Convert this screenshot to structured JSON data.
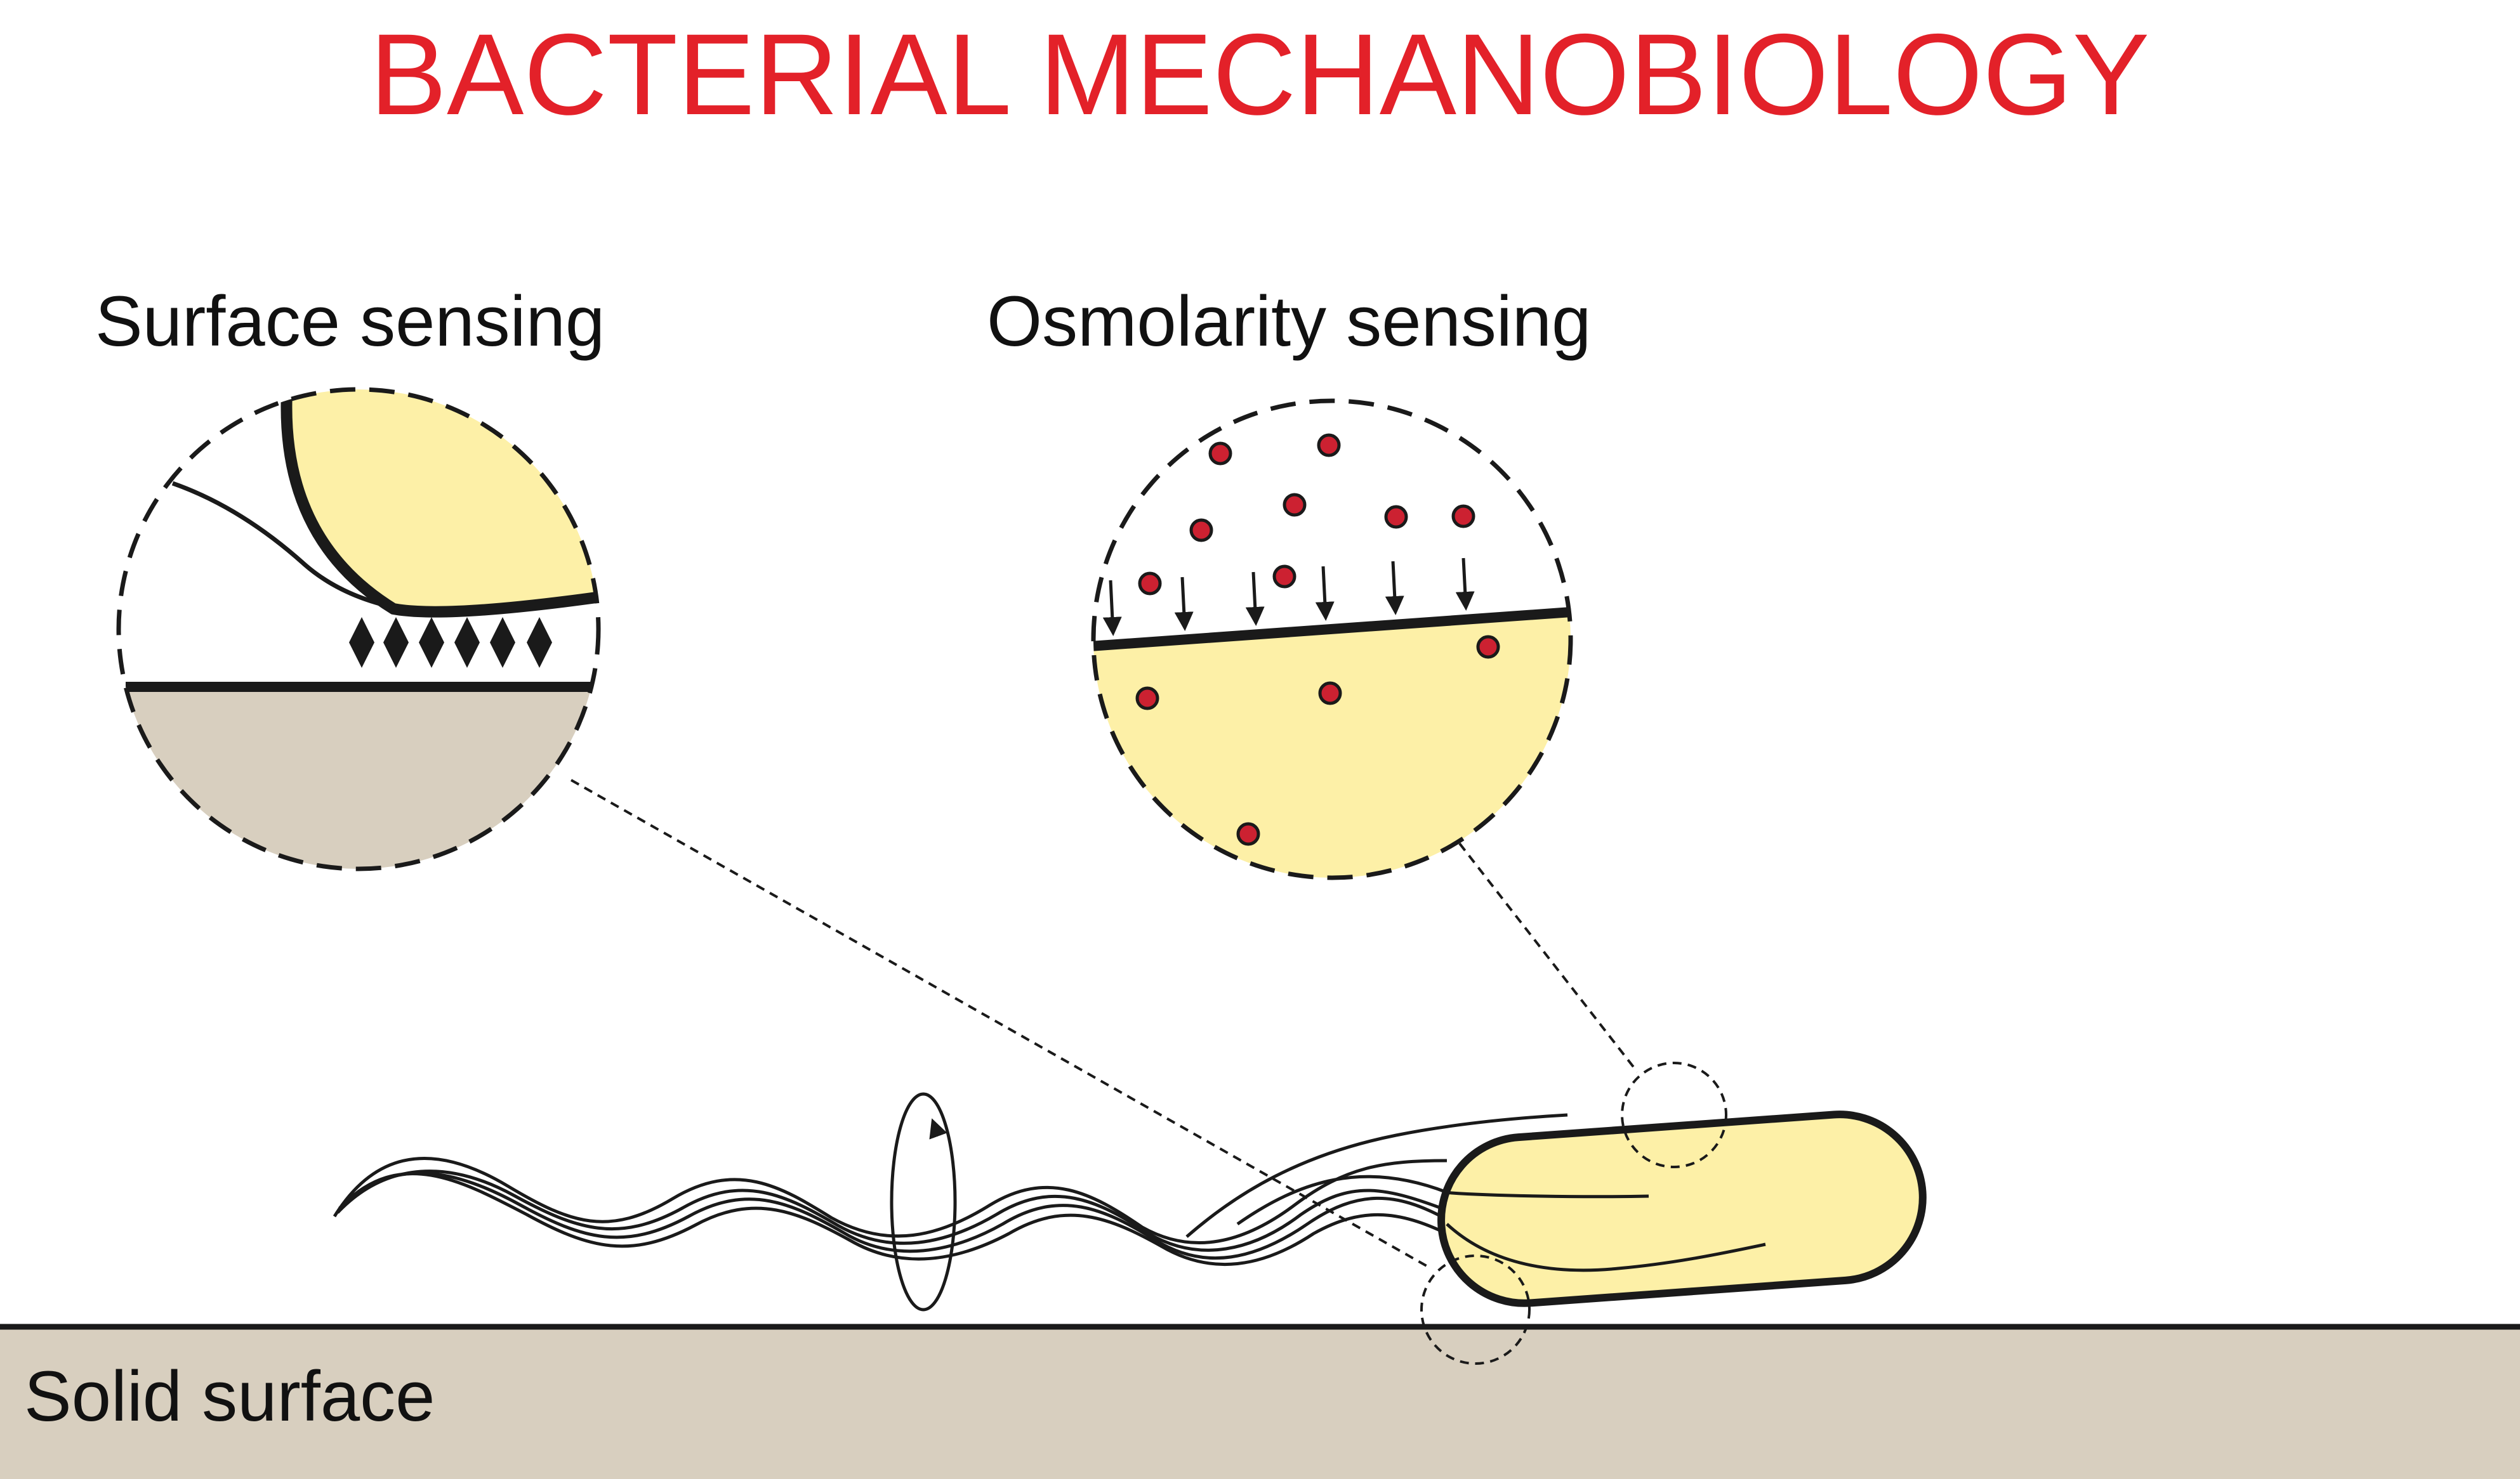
{
  "title": "BACTERIAL MECHANOBIOLOGY",
  "panels": {
    "surface_sensing": {
      "label": "Surface sensing"
    },
    "osmolarity_sensing": {
      "label": "Osmolarity sensing"
    }
  },
  "solid_surface": {
    "label": "Solid surface"
  },
  "colors": {
    "title": "#e32129",
    "cell_fill": "#fdf0a7",
    "surface_fill": "#d8cfbf",
    "solute": "#cc2131",
    "stroke": "#1a1a1a"
  }
}
